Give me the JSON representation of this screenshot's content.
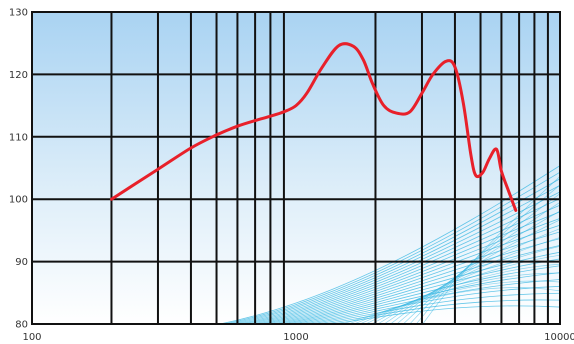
{
  "chart_data": {
    "type": "line",
    "x_scale": "log",
    "xlim": [
      100,
      10000
    ],
    "ylim": [
      80,
      130
    ],
    "grid": true,
    "x_ticks": [
      {
        "value": 100,
        "label": "100"
      },
      {
        "value": 1000,
        "label": "1000"
      },
      {
        "value": 10000,
        "label": "10000"
      }
    ],
    "y_ticks": [
      {
        "value": 80,
        "label": "80"
      },
      {
        "value": 90,
        "label": "90"
      },
      {
        "value": 100,
        "label": "100"
      },
      {
        "value": 110,
        "label": "110"
      },
      {
        "value": 120,
        "label": "120"
      },
      {
        "value": 130,
        "label": "130"
      }
    ],
    "series": [
      {
        "color": "#e8202a",
        "x": [
          200,
          300,
          400,
          500,
          600,
          700,
          800,
          900,
          1000,
          1100,
          1250,
          1450,
          1650,
          1800,
          1950,
          2150,
          2400,
          2700,
          3000,
          3300,
          3700,
          4000,
          4300,
          4600,
          4800,
          5100,
          5400,
          5750,
          6000,
          6400,
          6800
        ],
        "y": [
          100,
          104.8,
          108.2,
          110.3,
          111.7,
          112.6,
          113.3,
          114.0,
          115.0,
          117.0,
          121.0,
          124.6,
          124.5,
          122.3,
          118.5,
          115.0,
          113.8,
          114.0,
          117.0,
          120.0,
          122.1,
          121.2,
          115.5,
          107.0,
          103.8,
          104.3,
          106.5,
          108.0,
          104.5,
          101.2,
          98.2
        ]
      }
    ]
  },
  "colors": {
    "background_top": "#a9d3f2",
    "background_bottom": "#ffffff",
    "grid": "#111111",
    "wave_lines": "#34b6e2"
  }
}
